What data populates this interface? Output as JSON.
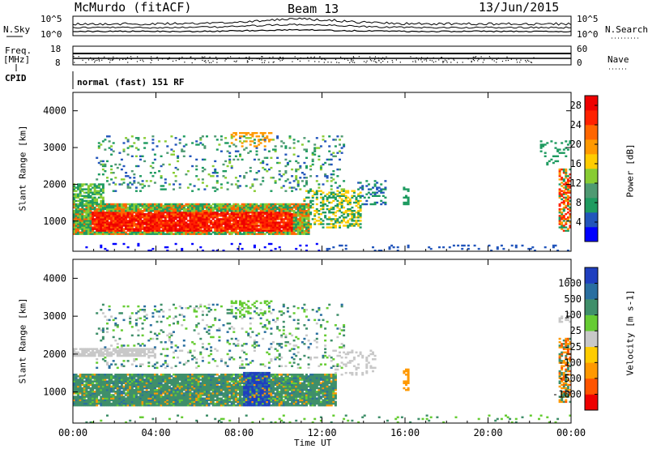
{
  "header": {
    "station": "McMurdo (fitACF)",
    "beam": "Beam 13",
    "date": "13/Jun/2015"
  },
  "noise_panel": {
    "left_label": "N.Sky",
    "left_ticks": [
      "10^5",
      "10^0"
    ],
    "right_label": "N.Search",
    "right_ticks": [
      "10^5",
      "10^0"
    ]
  },
  "freq_panel": {
    "left_label_1": "Freq.",
    "left_label_2": "[MHz]",
    "left_ticks": [
      "18",
      "8"
    ],
    "right_label": "Nave",
    "right_ticks": [
      "60",
      "0"
    ]
  },
  "cpid": {
    "label": "CPID",
    "text": "normal (fast) 151 RF"
  },
  "chart_data": [
    {
      "type": "heatmap",
      "title": "",
      "xlabel": "",
      "ylabel": "Slant Range [km]",
      "x_ticks": [
        "00:00",
        "04:00",
        "08:00",
        "12:00",
        "16:00",
        "20:00",
        "00:00"
      ],
      "y_ticks": [
        "1000",
        "2000",
        "3000",
        "4000"
      ],
      "xlim_hours": [
        0,
        24
      ],
      "ylim_km": [
        180,
        4500
      ],
      "colorbar": {
        "label": "Power [dB]",
        "ticks": [
          "4",
          "8",
          "12",
          "16",
          "20",
          "24",
          "28"
        ],
        "range": [
          0,
          30
        ],
        "colors": [
          "#0000ff",
          "#2255bb",
          "#1e9b60",
          "#4f9a72",
          "#88cc33",
          "#ffcc00",
          "#ff9900",
          "#ff6600",
          "#ff2200",
          "#ee0000"
        ]
      },
      "features": [
        {
          "name": "strong-echo-band",
          "hours": [
            0,
            11
          ],
          "range_km": [
            650,
            1400
          ],
          "value_db": 28
        },
        {
          "name": "upper-scatter",
          "hours": [
            1,
            13
          ],
          "range_km": [
            1800,
            3300
          ],
          "value_db": 12
        },
        {
          "name": "late-echo",
          "hours": [
            23.5,
            24
          ],
          "range_km": [
            800,
            2400
          ],
          "value_db": 24
        }
      ]
    },
    {
      "type": "heatmap",
      "title": "",
      "xlabel": "Time UT",
      "ylabel": "Slant Range [km]",
      "x_ticks": [
        "00:00",
        "04:00",
        "08:00",
        "12:00",
        "16:00",
        "20:00",
        "00:00"
      ],
      "y_ticks": [
        "1000",
        "2000",
        "3000",
        "4000"
      ],
      "xlim_hours": [
        0,
        24
      ],
      "ylim_km": [
        180,
        4500
      ],
      "colorbar": {
        "label": "Velocity [m s-1]",
        "ticks": [
          "1000",
          "500",
          "100",
          "25",
          "-25",
          "-100",
          "-500",
          "-1000"
        ],
        "colors": [
          "#1f3fbf",
          "#2a6fa0",
          "#3f8f6a",
          "#66cc33",
          "#c8c8c8",
          "#ffcc00",
          "#ff9900",
          "#ff5500",
          "#ee0000"
        ]
      },
      "features": [
        {
          "name": "main-velocity-band",
          "hours": [
            0,
            12.5
          ],
          "range_km": [
            600,
            1500
          ],
          "value_ms": 100
        },
        {
          "name": "blue-patch",
          "hours": [
            8,
            9.5
          ],
          "range_km": [
            600,
            1500
          ],
          "value_ms": 800
        },
        {
          "name": "late-echo",
          "hours": [
            23.5,
            24
          ],
          "range_km": [
            800,
            2400
          ],
          "value_ms": -300
        }
      ]
    }
  ]
}
